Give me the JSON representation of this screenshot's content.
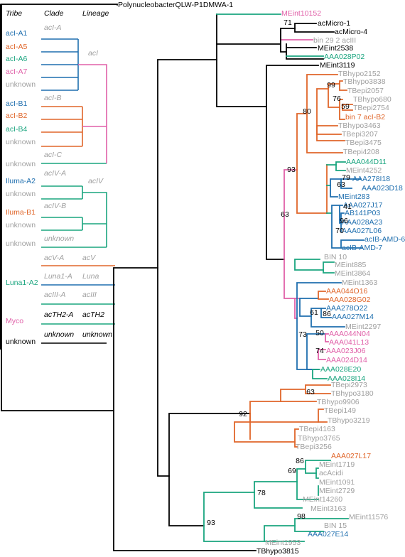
{
  "colors": {
    "black": "#000000",
    "orange": "#e0662a",
    "blue": "#1f6faf",
    "green": "#1aa57f",
    "pink": "#e060a8",
    "grey": "#a0a0a0"
  },
  "key": {
    "headers": [
      "Tribe",
      "Clade",
      "Lineage"
    ],
    "rows": [
      {
        "tribe": "acI-A1",
        "tc": "blue"
      },
      {
        "tribe": "acI-A5",
        "tc": "orange"
      },
      {
        "tribe": "acI-A6",
        "tc": "green"
      },
      {
        "tribe": "acI-A7",
        "tc": "pink"
      },
      {
        "tribe": "unknown",
        "tc": "grey"
      },
      {
        "tribe": "acI-B1",
        "tc": "blue"
      },
      {
        "tribe": "acI-B2",
        "tc": "orange"
      },
      {
        "tribe": "acI-B4",
        "tc": "green"
      },
      {
        "tribe": "unknown",
        "tc": "grey"
      },
      {
        "tribe": "unknown",
        "tc": "grey"
      },
      {
        "tribe": "Iluma-A2",
        "tc": "blue"
      },
      {
        "tribe": "unknown",
        "tc": "grey"
      },
      {
        "tribe": "Iluma-B1",
        "tc": "orange"
      },
      {
        "tribe": "unknown",
        "tc": "grey"
      },
      {
        "tribe": "unknown",
        "tc": "grey"
      },
      {
        "tribe": "Luna1-A2",
        "tc": "green"
      },
      {
        "tribe": "Myco",
        "tc": "pink"
      },
      {
        "tribe": "unknown",
        "tc": "black"
      }
    ],
    "clades": [
      {
        "label": "acI-A",
        "color": "grey"
      },
      {
        "label": "acI-B",
        "color": "grey"
      },
      {
        "label": "acI-C",
        "color": "grey"
      },
      {
        "label": "acIV-A",
        "color": "grey"
      },
      {
        "label": "acIV-B",
        "color": "grey"
      },
      {
        "label": "unknown",
        "color": "grey"
      },
      {
        "label": "acV-A",
        "color": "grey"
      },
      {
        "label": "Luna1-A",
        "color": "grey"
      },
      {
        "label": "acIII-A",
        "color": "grey"
      },
      {
        "label": "acTH2-A",
        "color": "black"
      },
      {
        "label": "unknown",
        "color": "black"
      }
    ],
    "lineages": [
      {
        "label": "acI",
        "color": "grey"
      },
      {
        "label": "acIV",
        "color": "grey"
      },
      {
        "label": "acV",
        "color": "grey"
      },
      {
        "label": "Luna",
        "color": "grey"
      },
      {
        "label": "acIII",
        "color": "grey"
      },
      {
        "label": "acTH2",
        "color": "black"
      },
      {
        "label": "unknown",
        "color": "black"
      }
    ]
  },
  "tree": {
    "leaves": [
      {
        "label": "PolynucleobacterQLW-P1DMWA-1",
        "color": "black"
      },
      {
        "label": "MEint10152",
        "color": "pink"
      },
      {
        "label": "acMicro-1",
        "color": "black"
      },
      {
        "label": "acMicro-4",
        "color": "black"
      },
      {
        "label": "bin 29 2 acIII",
        "color": "grey"
      },
      {
        "label": "MEint2538",
        "color": "black"
      },
      {
        "label": "AAA028P02",
        "color": "green"
      },
      {
        "label": "MEint3119",
        "color": "black"
      },
      {
        "label": "TBhypo2152",
        "color": "grey"
      },
      {
        "label": "TBhypo3838",
        "color": "grey"
      },
      {
        "label": "TBepi2057",
        "color": "grey"
      },
      {
        "label": "TBhypo680",
        "color": "grey"
      },
      {
        "label": "TBepi2754",
        "color": "grey"
      },
      {
        "label": "bin 7 acI-B2",
        "color": "orange"
      },
      {
        "label": "TBhypo3463",
        "color": "grey"
      },
      {
        "label": "TBepi3207",
        "color": "grey"
      },
      {
        "label": "TBepi3475",
        "color": "grey"
      },
      {
        "label": "TBepi4208",
        "color": "grey"
      },
      {
        "label": "AAA044D11",
        "color": "green"
      },
      {
        "label": "MEint4252",
        "color": "grey"
      },
      {
        "label": "AAA278I18",
        "color": "blue"
      },
      {
        "label": "AAA023D18",
        "color": "blue"
      },
      {
        "label": "MEint283",
        "color": "blue"
      },
      {
        "label": "AAA027J17",
        "color": "blue"
      },
      {
        "label": "AB141P03",
        "color": "blue"
      },
      {
        "label": "AAA028A23",
        "color": "blue"
      },
      {
        "label": "AAA027L06",
        "color": "blue"
      },
      {
        "label": "acIB-AMD-6",
        "color": "blue"
      },
      {
        "label": "acIB-AMD-7",
        "color": "blue"
      },
      {
        "label": "BIN 10",
        "color": "grey"
      },
      {
        "label": "MEint885",
        "color": "grey"
      },
      {
        "label": "MEint3864",
        "color": "grey"
      },
      {
        "label": "MEint1363",
        "color": "grey"
      },
      {
        "label": "AAA044O16",
        "color": "orange"
      },
      {
        "label": "AAA028G02",
        "color": "orange"
      },
      {
        "label": "AAA278O22",
        "color": "blue"
      },
      {
        "label": "AAA027M14",
        "color": "blue"
      },
      {
        "label": "MEint2297",
        "color": "grey"
      },
      {
        "label": "AAA044N04",
        "color": "pink"
      },
      {
        "label": "AAA041L13",
        "color": "pink"
      },
      {
        "label": "AAA023J06",
        "color": "pink"
      },
      {
        "label": "AAA024D14",
        "color": "pink"
      },
      {
        "label": "AAA028E20",
        "color": "green"
      },
      {
        "label": "AAA028I14",
        "color": "green"
      },
      {
        "label": "TBepi2973",
        "color": "grey"
      },
      {
        "label": "TBhypo3180",
        "color": "grey"
      },
      {
        "label": "TBhypo9906",
        "color": "grey"
      },
      {
        "label": "TBhypo3219",
        "color": "grey"
      },
      {
        "label": "TBepi149",
        "color": "grey"
      },
      {
        "label": "TBepi4163",
        "color": "grey"
      },
      {
        "label": "TBhypo3765",
        "color": "grey"
      },
      {
        "label": "TBepi3256",
        "color": "grey"
      },
      {
        "label": "AAA027L17",
        "color": "orange"
      },
      {
        "label": "MEint1719",
        "color": "grey"
      },
      {
        "label": "acAcidi",
        "color": "grey"
      },
      {
        "label": "MEint1091",
        "color": "grey"
      },
      {
        "label": "MEint2729",
        "color": "grey"
      },
      {
        "label": "MEint14260",
        "color": "grey"
      },
      {
        "label": "MEint3163",
        "color": "grey"
      },
      {
        "label": "MEint11576",
        "color": "grey"
      },
      {
        "label": "BIN 15",
        "color": "grey"
      },
      {
        "label": "AAA027E14",
        "color": "blue"
      },
      {
        "label": "MEint1953",
        "color": "grey"
      },
      {
        "label": "TBhypo3815",
        "color": "black"
      }
    ],
    "bootstraps": [
      "71",
      "99",
      "76",
      "59",
      "80",
      "93",
      "79",
      "63",
      "41",
      "96",
      "70",
      "63",
      "61",
      "86",
      "73",
      "50",
      "74",
      "63",
      "92",
      "86",
      "69",
      "78",
      "98",
      "93"
    ]
  }
}
